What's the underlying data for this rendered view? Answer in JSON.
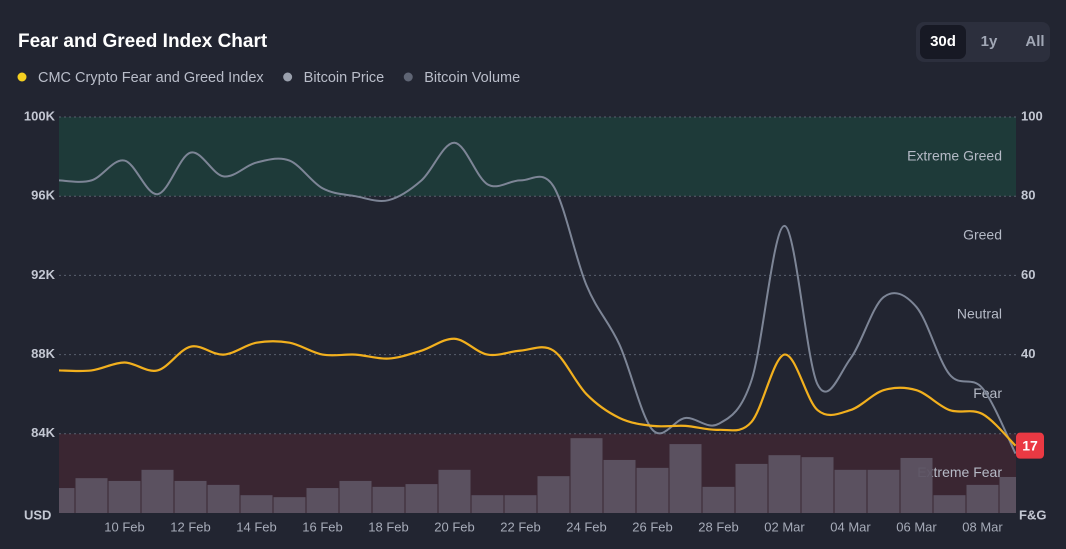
{
  "chart_data": {
    "type": "line",
    "title": "Fear and Greed Index Chart",
    "buttons": [
      "30d",
      "1y",
      "All"
    ],
    "active_button": 0,
    "categories": [
      null,
      null,
      "10 Feb",
      null,
      "12 Feb",
      null,
      "14 Feb",
      null,
      "16 Feb",
      null,
      "18 Feb",
      null,
      "20 Feb",
      null,
      "22 Feb",
      null,
      "24 Feb",
      null,
      "26 Feb",
      null,
      "28 Feb",
      null,
      "02 Mar",
      null,
      "04 Mar",
      null,
      "06 Mar",
      null,
      "08 Mar",
      null
    ],
    "series": [
      {
        "name": "CMC Crypto Fear and Greed Index",
        "type": "line",
        "axis": "y2",
        "color": "#f2b01e",
        "values": [
          36,
          36,
          38,
          36,
          42,
          40,
          43,
          43,
          40,
          40,
          39,
          41,
          44,
          40,
          41,
          41,
          30,
          24,
          22,
          22,
          21,
          23,
          40,
          26,
          26,
          31,
          31,
          26,
          25,
          17
        ]
      },
      {
        "name": "Bitcoin Price",
        "type": "line",
        "color": "#7d8596",
        "values": [
          96800,
          96800,
          97800,
          96100,
          98200,
          97000,
          97700,
          97800,
          96400,
          96000,
          95800,
          96800,
          98700,
          96600,
          96800,
          96500,
          91500,
          88500,
          84200,
          84800,
          84500,
          86700,
          94500,
          86500,
          87800,
          90900,
          90400,
          87000,
          86300,
          83000
        ]
      },
      {
        "name": "Bitcoin Volume",
        "type": "bar",
        "axis": "y2",
        "color": "#5d5363",
        "values": [
          6.3,
          8.8,
          8.1,
          10.9,
          8.1,
          7.1,
          4.5,
          4.0,
          6.3,
          8.1,
          6.6,
          7.3,
          10.9,
          4.5,
          4.5,
          9.3,
          18.9,
          13.4,
          11.4,
          17.4,
          6.6,
          12.4,
          14.6,
          14.1,
          10.9,
          10.9,
          13.9,
          4.5,
          7.1,
          9.1
        ]
      }
    ],
    "ylabel": "USD",
    "y2label": "F&G",
    "ylim": [
      80000,
      100000
    ],
    "yticks": [
      {
        "value": 84000,
        "label": "84K"
      },
      {
        "value": 88000,
        "label": "88K"
      },
      {
        "value": 92000,
        "label": "92K"
      },
      {
        "value": 96000,
        "label": "96K"
      },
      {
        "value": 100000,
        "label": "100K"
      }
    ],
    "y2lim": [
      0,
      100
    ],
    "y2ticks": [
      40,
      60,
      80,
      100
    ],
    "grid": true,
    "zones": [
      {
        "label": "Extreme Greed",
        "from": 80,
        "to": 100,
        "color": "#1e3a39"
      },
      {
        "label": "Greed",
        "from": 60,
        "to": 80
      },
      {
        "label": "Neutral",
        "from": 40,
        "to": 60
      },
      {
        "label": "Fear",
        "from": 20,
        "to": 40
      },
      {
        "label": "Extreme Fear",
        "from": 0,
        "to": 20,
        "color": "#3a2632"
      }
    ],
    "badge_color": "#ea3943"
  }
}
